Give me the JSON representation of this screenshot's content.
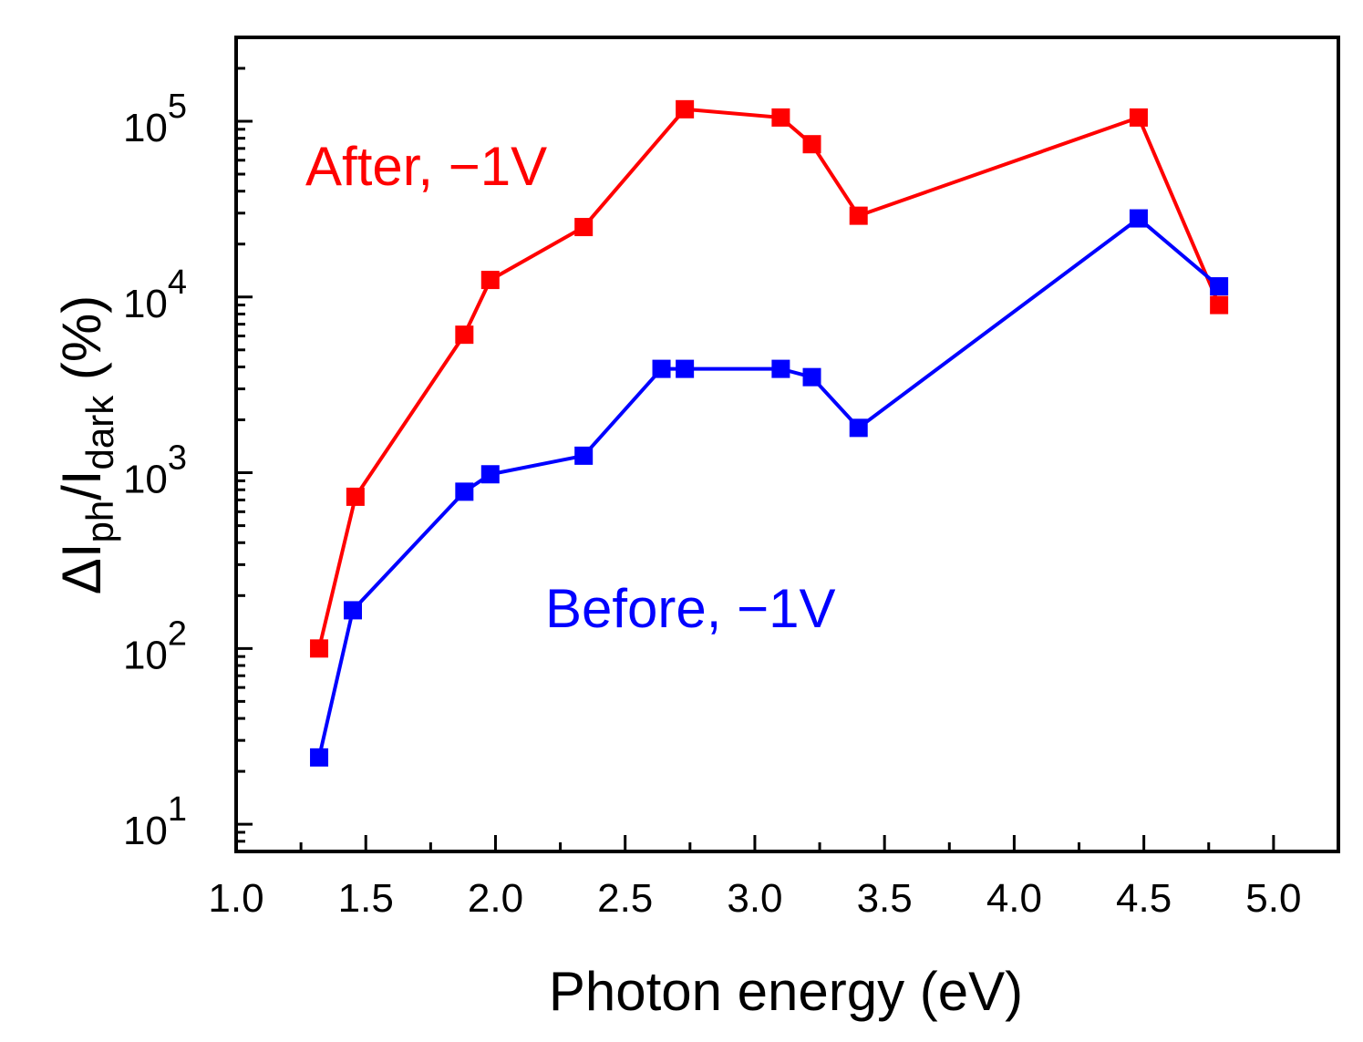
{
  "chart_data": {
    "type": "line",
    "title": "",
    "xlabel": "Photon energy (eV)",
    "ylabel": {
      "prefix": "ΔI",
      "sub1": "ph",
      "slash": "/I",
      "sub2": "dark",
      "suffix": " (%)"
    },
    "xlim": [
      1.0,
      5.25
    ],
    "ylim": [
      7,
      300000
    ],
    "yscale": "log",
    "x_ticks": [
      "1.0",
      "1.5",
      "2.0",
      "2.5",
      "3.0",
      "3.5",
      "4.0",
      "4.5",
      "5.0"
    ],
    "y_ticks": [
      {
        "base": "10",
        "exp": "1",
        "value": 10
      },
      {
        "base": "10",
        "exp": "2",
        "value": 100
      },
      {
        "base": "10",
        "exp": "3",
        "value": 1000
      },
      {
        "base": "10",
        "exp": "4",
        "value": 10000
      },
      {
        "base": "10",
        "exp": "5",
        "value": 100000
      }
    ],
    "grid": false,
    "series": [
      {
        "name": "After, −1V",
        "color": "#ff0000",
        "x": [
          1.32,
          1.46,
          1.88,
          1.98,
          2.34,
          2.73,
          3.1,
          3.22,
          3.4,
          4.48,
          4.79
        ],
        "y": [
          100,
          730,
          6100,
          12500,
          25000,
          117000,
          105000,
          74000,
          29000,
          105000,
          9000
        ]
      },
      {
        "name": "Before, −1V",
        "color": "#0000ff",
        "x": [
          1.32,
          1.45,
          1.88,
          1.98,
          2.34,
          2.64,
          2.73,
          3.1,
          3.22,
          3.4,
          4.48,
          4.79
        ],
        "y": [
          24,
          165,
          780,
          980,
          1250,
          3900,
          3900,
          3900,
          3500,
          1800,
          28000,
          11500
        ]
      }
    ]
  }
}
